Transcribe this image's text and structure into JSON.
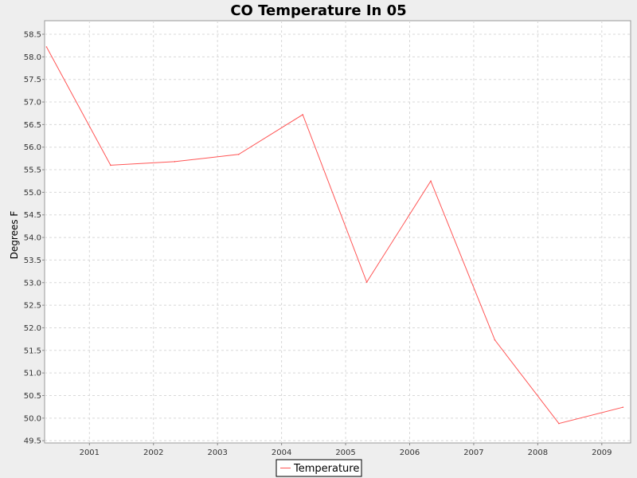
{
  "chart_data": {
    "type": "line",
    "title": "CO Temperature In 05",
    "xlabel": "",
    "ylabel": "Degrees F",
    "x_ticks": [
      "2001",
      "2002",
      "2003",
      "2004",
      "2005",
      "2006",
      "2007",
      "2008",
      "2009"
    ],
    "y_ticks": [
      "49.5",
      "50.0",
      "50.5",
      "51.0",
      "51.5",
      "52.0",
      "52.5",
      "53.0",
      "53.5",
      "54.0",
      "54.5",
      "55.0",
      "55.5",
      "56.0",
      "56.5",
      "57.0",
      "57.5",
      "58.0",
      "58.5"
    ],
    "xlim": [
      2000.3,
      2009.45
    ],
    "ylim": [
      49.45,
      58.8
    ],
    "grid": true,
    "legend": "bottom-center",
    "series": [
      {
        "name": "Temperature",
        "color": "#ff5555",
        "points": [
          {
            "x": 2000.33,
            "y": 58.22
          },
          {
            "x": 2001.33,
            "y": 55.6
          },
          {
            "x": 2002.33,
            "y": 55.68
          },
          {
            "x": 2003.33,
            "y": 55.84
          },
          {
            "x": 2004.33,
            "y": 56.72
          },
          {
            "x": 2005.33,
            "y": 53.01
          },
          {
            "x": 2006.33,
            "y": 55.25
          },
          {
            "x": 2007.33,
            "y": 51.73
          },
          {
            "x": 2008.33,
            "y": 49.88
          },
          {
            "x": 2009.33,
            "y": 50.24
          }
        ]
      }
    ]
  }
}
